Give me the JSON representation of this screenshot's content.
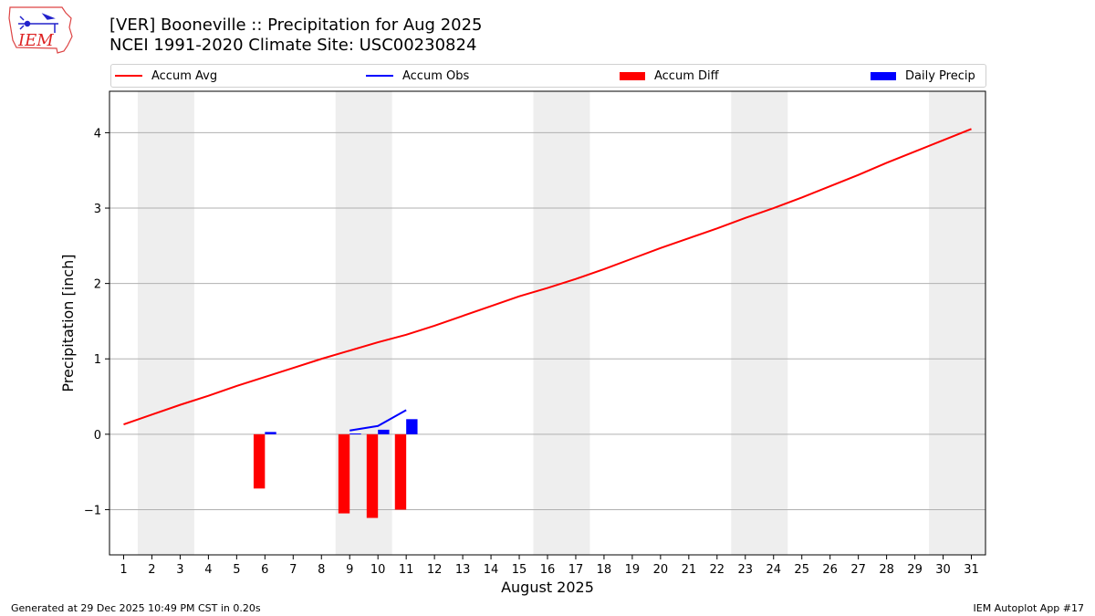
{
  "header": {
    "title_line1": "[VER] Booneville :: Precipitation for Aug 2025",
    "title_line2": "NCEI 1991-2020 Climate Site: USC00230824",
    "logo_text": "IEM"
  },
  "footer": {
    "generated": "Generated at 29 Dec 2025 10:49 PM CST in 0.20s",
    "app": "IEM Autoplot App #17"
  },
  "colors": {
    "avg": "#ff0000",
    "obs": "#0000ff",
    "diff": "#ff0000",
    "daily": "#0000ff",
    "weekend": "#eeeeee",
    "grid": "#b0b0b0"
  },
  "chart_data": {
    "type": "bar",
    "xlabel": "August 2025",
    "ylabel": "Precipitation [inch]",
    "xlim": [
      0.5,
      31.5
    ],
    "ylim": [
      -1.6,
      4.55
    ],
    "y_ticks": [
      -1,
      0,
      1,
      2,
      3,
      4
    ],
    "y_tick_labels": [
      "−1",
      "0",
      "1",
      "2",
      "3",
      "4"
    ],
    "x_ticks": [
      1,
      2,
      3,
      4,
      5,
      6,
      7,
      8,
      9,
      10,
      11,
      12,
      13,
      14,
      15,
      16,
      17,
      18,
      19,
      20,
      21,
      22,
      23,
      24,
      25,
      26,
      27,
      28,
      29,
      30,
      31
    ],
    "grid": "horizontal",
    "legend": "top, above plot",
    "weekend_bands": [
      [
        2,
        3
      ],
      [
        9,
        10
      ],
      [
        16,
        17
      ],
      [
        23,
        24
      ],
      [
        30,
        31
      ]
    ],
    "series": [
      {
        "name": "Accum Avg",
        "kind": "line",
        "x": [
          1,
          2,
          3,
          4,
          5,
          6,
          7,
          8,
          9,
          10,
          11,
          12,
          13,
          14,
          15,
          16,
          17,
          18,
          19,
          20,
          21,
          22,
          23,
          24,
          25,
          26,
          27,
          28,
          29,
          30,
          31
        ],
        "values": [
          0.13,
          0.26,
          0.39,
          0.51,
          0.64,
          0.76,
          0.88,
          1.0,
          1.11,
          1.22,
          1.32,
          1.44,
          1.57,
          1.7,
          1.83,
          1.94,
          2.06,
          2.19,
          2.33,
          2.47,
          2.6,
          2.73,
          2.87,
          3.0,
          3.14,
          3.29,
          3.44,
          3.6,
          3.75,
          3.9,
          4.05
        ]
      },
      {
        "name": "Accum Obs",
        "kind": "line",
        "x": [
          9,
          10,
          11
        ],
        "values": [
          0.05,
          0.11,
          0.32
        ]
      },
      {
        "name": "Accum Diff",
        "kind": "bar",
        "x": [
          6,
          9,
          10,
          11
        ],
        "values": [
          -0.72,
          -1.05,
          -1.11,
          -1.0
        ]
      },
      {
        "name": "Daily Precip",
        "kind": "bar",
        "x": [
          6,
          9,
          10,
          11
        ],
        "values": [
          0.03,
          0.01,
          0.06,
          0.2
        ]
      }
    ]
  }
}
